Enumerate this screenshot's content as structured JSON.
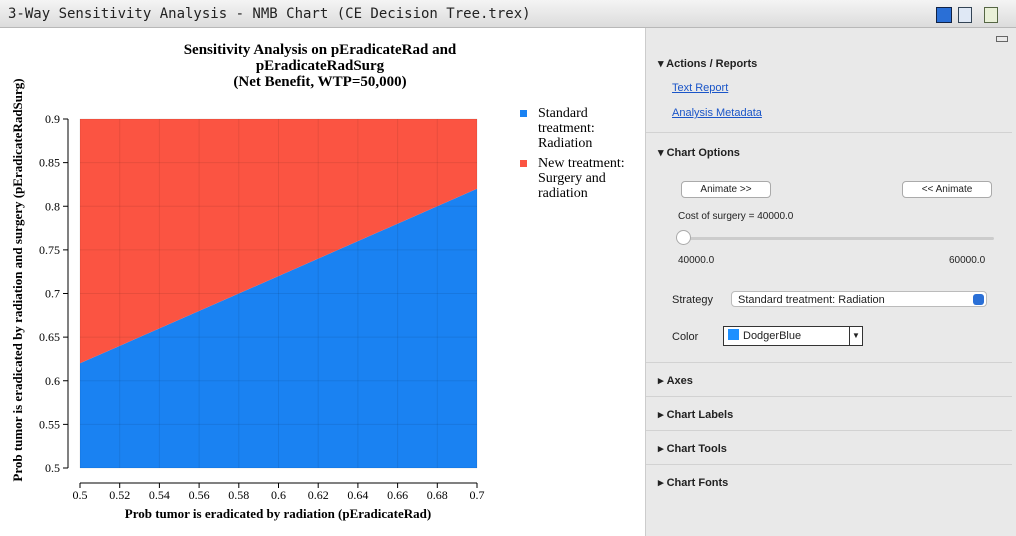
{
  "window_title": "3-Way Sensitivity Analysis - NMB Chart (CE Decision Tree.trex)",
  "chart": {
    "type": "area",
    "title": [
      "Sensitivity Analysis on pEradicateRad and",
      "pEradicateRadSurg",
      "(Net Benefit, WTP=50,000)"
    ],
    "x_label": "Prob tumor is eradicated by radiation (pEradicateRad)",
    "y_label": "Prob tumor is eradicated by radiation and surgery (pEradicateRadSurg)",
    "x": [
      0.5,
      0.7
    ],
    "boundary": [
      0.62,
      0.82
    ],
    "series": [
      {
        "name": "Standard treatment: Radiation",
        "color": "#1a82f2",
        "region": "below"
      },
      {
        "name": "New treatment: Surgery and radiation",
        "color": "#fb5442",
        "region": "above"
      }
    ],
    "xlim": [
      0.5,
      0.7
    ],
    "xticks": [
      0.5,
      0.52,
      0.54,
      0.56,
      0.58,
      0.6,
      0.62,
      0.64,
      0.66,
      0.68,
      0.7
    ],
    "ylim": [
      0.5,
      0.9
    ],
    "yticks": [
      0.5,
      0.55,
      0.6,
      0.65,
      0.7,
      0.75,
      0.8,
      0.85,
      0.9
    ],
    "grid": true
  },
  "panel": {
    "actions": {
      "title": "Actions / Reports",
      "links": [
        "Text Report",
        "Analysis Metadata"
      ]
    },
    "options": {
      "title": "Chart Options",
      "buttons": [
        "Animate >>",
        "<< Animate"
      ],
      "slider": {
        "label": "Cost of surgery = 40000.0",
        "min": {
          "value": 40000,
          "label": "40000.0"
        },
        "max": {
          "value": 60000,
          "label": "60000.0"
        },
        "value": 40000
      },
      "strategy_label": "Strategy",
      "strategy": "Standard treatment: Radiation",
      "color_label": "Color",
      "color": "DodgerBlue"
    },
    "sections": [
      "Axes",
      "Chart Labels",
      "Chart Tools",
      "Chart Fonts"
    ]
  }
}
